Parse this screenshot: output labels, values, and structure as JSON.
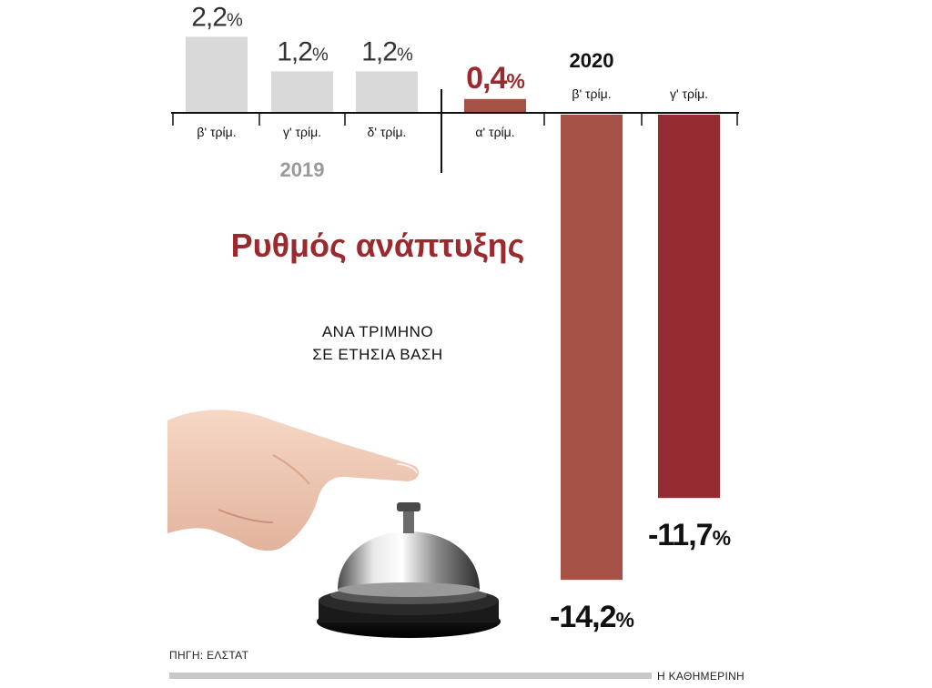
{
  "chart_data": {
    "type": "bar",
    "title": "Ρυθμός ανάπτυξης",
    "subtitle": [
      "ΑΝΑ ΤΡΙΜΗΝΟ",
      "ΣΕ ΕΤΗΣΙΑ ΒΑΣΗ"
    ],
    "categories": [
      "β' τρίμ.",
      "γ' τρίμ.",
      "δ' τρίμ.",
      "α' τρίμ.",
      "β' τρίμ.",
      "γ' τρίμ."
    ],
    "groups": [
      {
        "label": "2019",
        "categories": [
          0,
          1,
          2
        ]
      },
      {
        "label": "2020",
        "categories": [
          3,
          4,
          5
        ]
      }
    ],
    "values": [
      2.2,
      1.2,
      1.2,
      0.4,
      -14.2,
      -11.7
    ],
    "value_labels": [
      {
        "num": "2,2",
        "unit": "%"
      },
      {
        "num": "1,2",
        "unit": "%"
      },
      {
        "num": "1,2",
        "unit": "%"
      },
      {
        "num": "0,4",
        "unit": "%"
      },
      {
        "num": "-14,2",
        "unit": "%"
      },
      {
        "num": "-11,7",
        "unit": "%"
      }
    ],
    "colors": [
      "#d9d9d9",
      "#d9d9d9",
      "#d9d9d9",
      "#a55145",
      "#a55145",
      "#972b32"
    ],
    "label_colors": [
      "#333333",
      "#333333",
      "#333333",
      "#9b2a2e",
      "#111111",
      "#111111"
    ],
    "year_colors": {
      "2019": "#9a9a9a",
      "2020": "#111111"
    },
    "ylim": [
      -15,
      3
    ],
    "grid": false,
    "legend": "none"
  },
  "source": "ΠΗΓΗ: ΕΛΣΤΑΤ",
  "brand": "Η ΚΑΘΗΜΕΡΙΝΗ",
  "illustration": "hand-ringing-service-bell"
}
